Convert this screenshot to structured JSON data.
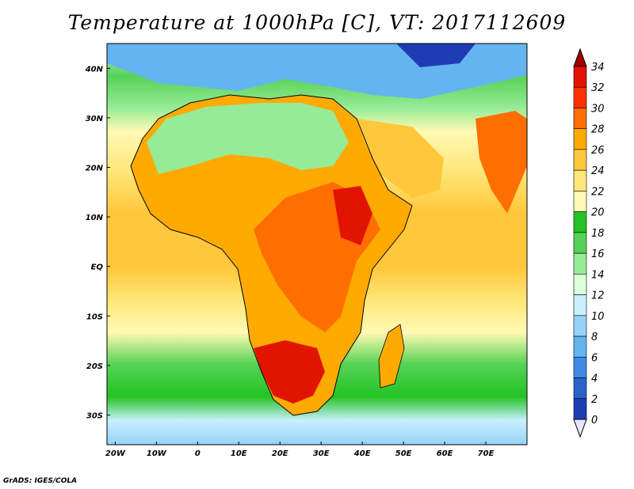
{
  "title": "Temperature at 1000hPa [C], VT: 2017112609",
  "footer": "GrADS: IGES/COLA",
  "map": {
    "x_ticks": [
      {
        "lon": -20,
        "label": "20W"
      },
      {
        "lon": -10,
        "label": "10W"
      },
      {
        "lon": 0,
        "label": "0"
      },
      {
        "lon": 10,
        "label": "10E"
      },
      {
        "lon": 20,
        "label": "20E"
      },
      {
        "lon": 30,
        "label": "30E"
      },
      {
        "lon": 40,
        "label": "40E"
      },
      {
        "lon": 50,
        "label": "50E"
      },
      {
        "lon": 60,
        "label": "60E"
      },
      {
        "lon": 70,
        "label": "70E"
      }
    ],
    "y_ticks": [
      {
        "lat": 40,
        "label": "40N"
      },
      {
        "lat": 30,
        "label": "30N"
      },
      {
        "lat": 20,
        "label": "20N"
      },
      {
        "lat": 10,
        "label": "10N"
      },
      {
        "lat": 0,
        "label": "EQ"
      },
      {
        "lat": -10,
        "label": "10S"
      },
      {
        "lat": -20,
        "label": "20S"
      },
      {
        "lat": -30,
        "label": "30S"
      }
    ],
    "lon_range": [
      -22,
      80
    ],
    "lat_range": [
      -36,
      45
    ]
  },
  "colorbar": {
    "levels": [
      "34",
      "32",
      "30",
      "28",
      "26",
      "24",
      "22",
      "20",
      "18",
      "16",
      "14",
      "12",
      "10",
      "8",
      "6",
      "4",
      "2",
      "0"
    ],
    "colors": [
      "#a00000",
      "#e11400",
      "#ff3200",
      "#ff6e00",
      "#ffaa00",
      "#ffc83c",
      "#ffe678",
      "#fffab4",
      "#23c323",
      "#55d255",
      "#96eb96",
      "#dcffdc",
      "#c8f0ff",
      "#96d2fa",
      "#64b4f0",
      "#3c8ce6",
      "#2864c8",
      "#1e3cb4",
      "#0a0a78"
    ]
  }
}
